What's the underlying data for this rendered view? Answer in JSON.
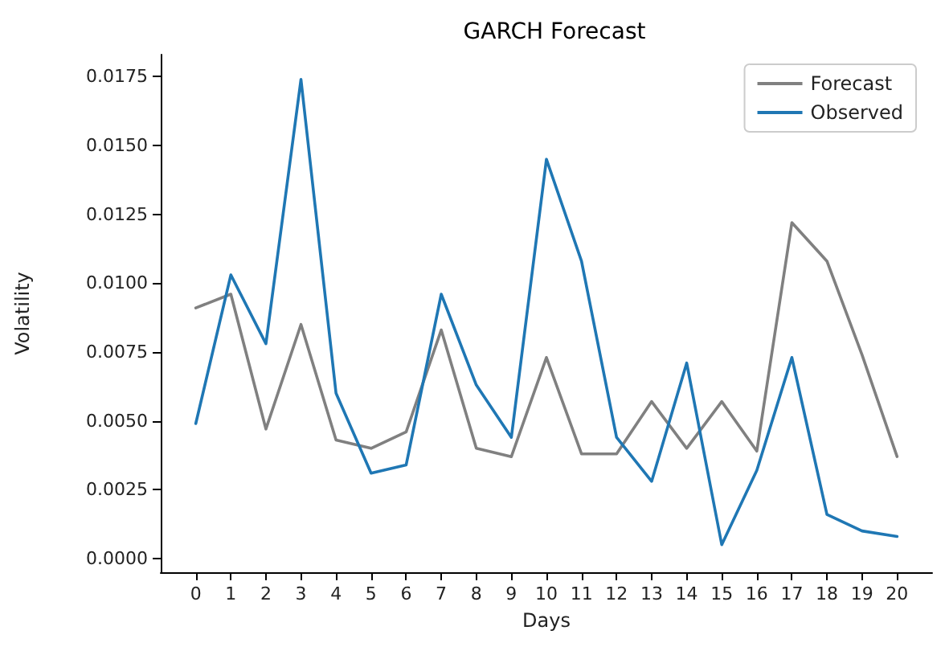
{
  "chart_data": {
    "type": "line",
    "title": "GARCH Forecast",
    "xlabel": "Days",
    "ylabel": "Volatility",
    "x": [
      0,
      1,
      2,
      3,
      4,
      5,
      6,
      7,
      8,
      9,
      10,
      11,
      12,
      13,
      14,
      15,
      16,
      17,
      18,
      19,
      20
    ],
    "series": [
      {
        "name": "Forecast",
        "color": "#808080",
        "values": [
          0.0091,
          0.0096,
          0.0047,
          0.0085,
          0.0043,
          0.004,
          0.0046,
          0.0083,
          0.004,
          0.0037,
          0.0073,
          0.0038,
          0.0038,
          0.0057,
          0.004,
          0.0057,
          0.0039,
          0.0122,
          0.0108,
          0.0074,
          0.0037
        ]
      },
      {
        "name": "Observed",
        "color": "#1f77b4",
        "values": [
          0.0049,
          0.0103,
          0.0078,
          0.0174,
          0.006,
          0.0031,
          0.0034,
          0.0096,
          0.0063,
          0.0044,
          0.0145,
          0.0108,
          0.0044,
          0.0028,
          0.0071,
          0.0005,
          0.0032,
          0.0073,
          0.0016,
          0.001,
          0.0008
        ]
      }
    ],
    "xlim": [
      -1,
      21
    ],
    "xticks": [
      0,
      1,
      2,
      3,
      4,
      5,
      6,
      7,
      8,
      9,
      10,
      11,
      12,
      13,
      14,
      15,
      16,
      17,
      18,
      19,
      20
    ],
    "ylim": [
      -0.0005,
      0.0183
    ],
    "yticks": [
      {
        "value": 0,
        "label": "0.0000"
      },
      {
        "value": 0.0025,
        "label": "0.0025"
      },
      {
        "value": 0.005,
        "label": "0.0050"
      },
      {
        "value": 0.0075,
        "label": "0.0075"
      },
      {
        "value": 0.01,
        "label": "0.0100"
      },
      {
        "value": 0.0125,
        "label": "0.0125"
      },
      {
        "value": 0.015,
        "label": "0.0150"
      },
      {
        "value": 0.0175,
        "label": "0.0175"
      }
    ],
    "grid": false,
    "legend": "top right",
    "marker": "none",
    "line_style": "solid"
  }
}
